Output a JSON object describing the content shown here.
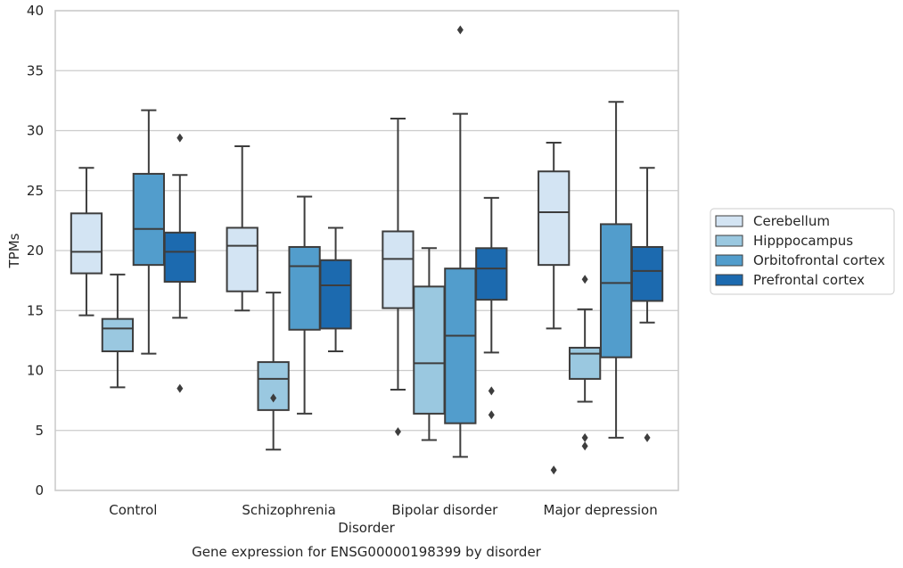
{
  "chart_data": {
    "type": "box",
    "xlabel": "Disorder",
    "ylabel": "TPMs",
    "caption": "Gene expression for ENSG00000198399 by disorder",
    "ylim": [
      0,
      40
    ],
    "yticks": [
      0,
      5,
      10,
      15,
      20,
      25,
      30,
      35,
      40
    ],
    "grid": true,
    "legend_position": "right",
    "categories": [
      "Control",
      "Schizophrenia",
      "Bipolar disorder",
      "Major depression"
    ],
    "series": [
      {
        "name": "Cerebellum",
        "color": "#d3e4f3",
        "boxes": [
          {
            "whislo": 14.6,
            "q1": 18.1,
            "med": 19.9,
            "q3": 23.1,
            "whishi": 26.9,
            "fliers": []
          },
          {
            "whislo": 15.0,
            "q1": 16.6,
            "med": 20.4,
            "q3": 21.9,
            "whishi": 28.7,
            "fliers": []
          },
          {
            "whislo": 8.4,
            "q1": 15.2,
            "med": 19.3,
            "q3": 21.6,
            "whishi": 31.0,
            "fliers": [
              4.9
            ]
          },
          {
            "whislo": 13.5,
            "q1": 18.8,
            "med": 23.2,
            "q3": 26.6,
            "whishi": 29.0,
            "fliers": [
              1.7
            ]
          }
        ]
      },
      {
        "name": "Hipppocampus",
        "color": "#9ac8e0",
        "boxes": [
          {
            "whislo": 8.6,
            "q1": 11.6,
            "med": 13.5,
            "q3": 14.3,
            "whishi": 18.0,
            "fliers": []
          },
          {
            "whislo": 3.4,
            "q1": 6.7,
            "med": 9.3,
            "q3": 10.7,
            "whishi": 16.5,
            "fliers": [
              7.7
            ]
          },
          {
            "whislo": 4.2,
            "q1": 6.4,
            "med": 10.6,
            "q3": 17.0,
            "whishi": 20.2,
            "fliers": []
          },
          {
            "whislo": 7.4,
            "q1": 9.3,
            "med": 11.4,
            "q3": 11.9,
            "whishi": 15.1,
            "fliers": [
              17.6,
              4.4,
              3.7
            ]
          }
        ]
      },
      {
        "name": "Orbitofrontal cortex",
        "color": "#529dcc",
        "boxes": [
          {
            "whislo": 11.4,
            "q1": 18.8,
            "med": 21.8,
            "q3": 26.4,
            "whishi": 31.7,
            "fliers": []
          },
          {
            "whislo": 6.4,
            "q1": 13.4,
            "med": 18.7,
            "q3": 20.3,
            "whishi": 24.5,
            "fliers": []
          },
          {
            "whislo": 2.8,
            "q1": 5.6,
            "med": 12.9,
            "q3": 18.5,
            "whishi": 31.4,
            "fliers": [
              38.4
            ]
          },
          {
            "whislo": 4.4,
            "q1": 11.1,
            "med": 17.3,
            "q3": 22.2,
            "whishi": 32.4,
            "fliers": []
          }
        ]
      },
      {
        "name": "Prefrontal cortex",
        "color": "#1c6aaf",
        "boxes": [
          {
            "whislo": 14.4,
            "q1": 17.4,
            "med": 19.9,
            "q3": 21.5,
            "whishi": 26.3,
            "fliers": [
              29.4,
              8.5
            ]
          },
          {
            "whislo": 11.6,
            "q1": 13.5,
            "med": 17.1,
            "q3": 19.2,
            "whishi": 21.9,
            "fliers": []
          },
          {
            "whislo": 11.5,
            "q1": 15.9,
            "med": 18.5,
            "q3": 20.2,
            "whishi": 24.4,
            "fliers": [
              8.3,
              6.3
            ]
          },
          {
            "whislo": 14.0,
            "q1": 15.8,
            "med": 18.3,
            "q3": 20.3,
            "whishi": 26.9,
            "fliers": [
              4.4
            ]
          }
        ]
      }
    ]
  }
}
